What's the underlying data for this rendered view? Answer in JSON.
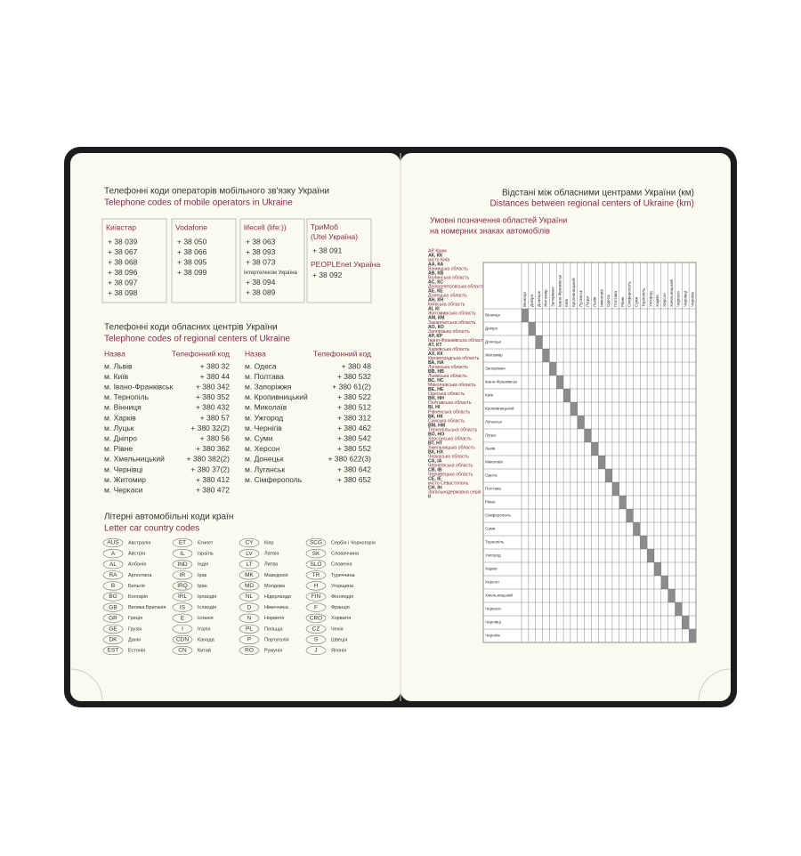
{
  "left_page": {
    "mobile": {
      "title_uk": "Телефонні коди операторів мобільного зв'язку України",
      "title_en": "Telephone codes of mobile operators in Ukraine",
      "operators": [
        {
          "name": "Київстар",
          "codes": [
            "+ 38 039",
            "+ 38 067",
            "+ 38 068",
            "+ 38 096",
            "+ 38 097",
            "+ 38 098"
          ]
        },
        {
          "name": "Vodafone",
          "codes": [
            "+ 38 050",
            "+ 38 066",
            "+ 38 095",
            "+ 38 099"
          ]
        },
        {
          "name": "lifecell (life:))",
          "codes": [
            "+ 38 063",
            "+ 38 093",
            "+ 38 073"
          ],
          "sub_name": "Інтертелеком Україна",
          "sub_codes": [
            "+ 38 094",
            "+ 38 089"
          ]
        },
        {
          "name": "ТриМоб (Utel Україна)",
          "codes": [
            "+ 38 091"
          ],
          "sub_name": "PEOPLEnet Україна",
          "sub_codes": [
            "+ 38 092"
          ]
        }
      ]
    },
    "regional": {
      "title_uk": "Телефонні коди обласних центрів України",
      "title_en": "Telephone codes of regional centers of Ukraine",
      "header_name": "Назва",
      "header_code": "Телефонний код",
      "columns": [
        [
          [
            "м. Львів",
            "+ 380 32"
          ],
          [
            "м. Київ",
            "+ 380 44"
          ],
          [
            "м. Івано-Франківськ",
            "+ 380 342"
          ],
          [
            "м. Тернопіль",
            "+ 380 352"
          ],
          [
            "м. Вінниця",
            "+ 380 432"
          ],
          [
            "м. Харків",
            "+ 380 57"
          ],
          [
            "м. Луцьк",
            "+ 380 32(2)"
          ],
          [
            "м. Дніпро",
            "+ 380 56"
          ],
          [
            "м. Рівне",
            "+ 380 362"
          ],
          [
            "м. Хмельницький",
            "+ 380 382(2)"
          ],
          [
            "м. Чернівці",
            "+ 380 37(2)"
          ],
          [
            "м. Житомир",
            "+ 380 412"
          ],
          [
            "м. Черкаси",
            "+ 380 472"
          ]
        ],
        [
          [
            "м. Одеса",
            "+ 380 48"
          ],
          [
            "м. Полтава",
            "+ 380 532"
          ],
          [
            "м. Запоріжжя",
            "+ 380 61(2)"
          ],
          [
            "м. Кропивницький",
            "+ 380 522"
          ],
          [
            "м. Миколаїв",
            "+ 380 512"
          ],
          [
            "м. Ужгород",
            "+ 380 312"
          ],
          [
            "м. Чернігів",
            "+ 380 462"
          ],
          [
            "м. Суми",
            "+ 380 542"
          ],
          [
            "м. Херсон",
            "+ 380 552"
          ],
          [
            "м. Донецьк",
            "+ 380 622(3)"
          ],
          [
            "м. Луганськ",
            "+ 380 642"
          ],
          [
            "м. Сімферополь",
            "+ 380 652"
          ]
        ]
      ]
    },
    "countries": {
      "title_uk": "Літерні автомобільні коди країн",
      "title_en": "Letter car country codes",
      "columns": [
        [
          [
            "AUS",
            "Австралія"
          ],
          [
            "A",
            "Австрія"
          ],
          [
            "AL",
            "Албанія"
          ],
          [
            "RA",
            "Аргентина"
          ],
          [
            "B",
            "Бельгія"
          ],
          [
            "BG",
            "Болгарія"
          ],
          [
            "GB",
            "Велика Британія"
          ],
          [
            "GR",
            "Греція"
          ],
          [
            "GE",
            "Грузія"
          ],
          [
            "DK",
            "Данія"
          ],
          [
            "EST",
            "Естонія"
          ]
        ],
        [
          [
            "ET",
            "Єгипет"
          ],
          [
            "IL",
            "Ізраїль"
          ],
          [
            "IND",
            "Індія"
          ],
          [
            "IR",
            "Ірак"
          ],
          [
            "IRQ",
            "Іран"
          ],
          [
            "IRL",
            "Ірландія"
          ],
          [
            "IS",
            "Ісландія"
          ],
          [
            "E",
            "Іспанія"
          ],
          [
            "I",
            "Італія"
          ],
          [
            "CDN",
            "Канада"
          ],
          [
            "CN",
            "Китай"
          ]
        ],
        [
          [
            "CY",
            "Кіпр"
          ],
          [
            "LV",
            "Латвія"
          ],
          [
            "LT",
            "Литва"
          ],
          [
            "MK",
            "Македонія"
          ],
          [
            "MD",
            "Молдова"
          ],
          [
            "NL",
            "Нідерланди"
          ],
          [
            "D",
            "Німеччина"
          ],
          [
            "N",
            "Норвегія"
          ],
          [
            "PL",
            "Польща"
          ],
          [
            "P",
            "Португалія"
          ],
          [
            "RO",
            "Румунія"
          ]
        ],
        [
          [
            "SCG",
            "Сербія і Чорногорія"
          ],
          [
            "SK",
            "Словаччина"
          ],
          [
            "SLO",
            "Словенія"
          ],
          [
            "TR",
            "Туреччина"
          ],
          [
            "H",
            "Угорщина"
          ],
          [
            "FIN",
            "Фінляндія"
          ],
          [
            "F",
            "Франція"
          ],
          [
            "CRO",
            "Хорватія"
          ],
          [
            "CZ",
            "Чехія"
          ],
          [
            "S",
            "Швеція"
          ],
          [
            "J",
            "Японія"
          ]
        ]
      ]
    }
  },
  "right_page": {
    "title_uk": "Відстані між обласними центрами України (км)",
    "title_en": "Distances between regional centers of Ukraine (km)",
    "plates_title": [
      "Умовні позначення областей України",
      "на номерних знаках автомобілів"
    ],
    "plates": [
      [
        "АР Крим",
        "АК, КК"
      ],
      [
        "місто Київ",
        "АА, КА"
      ],
      [
        "Вінницька область",
        "АВ, КВ"
      ],
      [
        "Волинська область",
        "АС, КС"
      ],
      [
        "Дніпропетровська область",
        "АЕ, КЕ"
      ],
      [
        "Донецька область",
        "АН, КН"
      ],
      [
        "Київська область",
        "АІ, КІ"
      ],
      [
        "Житомирська область",
        "АМ, КМ"
      ],
      [
        "Закарпатська область",
        "АО, КО"
      ],
      [
        "Запорізька область",
        "АР, КР"
      ],
      [
        "Івано-Франківська область",
        "АТ, КТ"
      ],
      [
        "Харківська область",
        "АХ, КХ"
      ],
      [
        "Кіровоградська область",
        "ВА, НА"
      ],
      [
        "Луганська область",
        "ВВ, НВ"
      ],
      [
        "Львівська область",
        "ВС, НС"
      ],
      [
        "Миколаївська область",
        "ВЕ, НЕ"
      ],
      [
        "Одеська область",
        "ВН, НН"
      ],
      [
        "Полтавська область",
        "ВІ, НІ"
      ],
      [
        "Рівненська область",
        "ВК, НК"
      ],
      [
        "Сумська область",
        "ВМ, НМ"
      ],
      [
        "Тернопільська область",
        "ВО, НО"
      ],
      [
        "Херсонська область",
        "ВТ, НТ"
      ],
      [
        "Хмельницька область",
        "ВХ, НХ"
      ],
      [
        "Черкаська область",
        "СА, ІА"
      ],
      [
        "Чернігівська область",
        "СВ, ІВ"
      ],
      [
        "Чернівецька область",
        "СЕ, ІЕ"
      ],
      [
        "місто Севастополь",
        "СН, ІН"
      ],
      [
        "Загальнодержавна серія",
        "ІІ"
      ]
    ],
    "cities": [
      "Вінниця",
      "Дніпро",
      "Донецьк",
      "Житомир",
      "Запоріжжя",
      "Івано-Франківськ",
      "Київ",
      "Кропивницький",
      "Луганськ",
      "Луцьк",
      "Львів",
      "Миколаїв",
      "Одеса",
      "Полтава",
      "Рівне",
      "Сімферополь",
      "Суми",
      "Тернопіль",
      "Ужгород",
      "Харків",
      "Херсон",
      "Хмельницький",
      "Черкаси",
      "Чернівці",
      "Чернігів"
    ]
  }
}
